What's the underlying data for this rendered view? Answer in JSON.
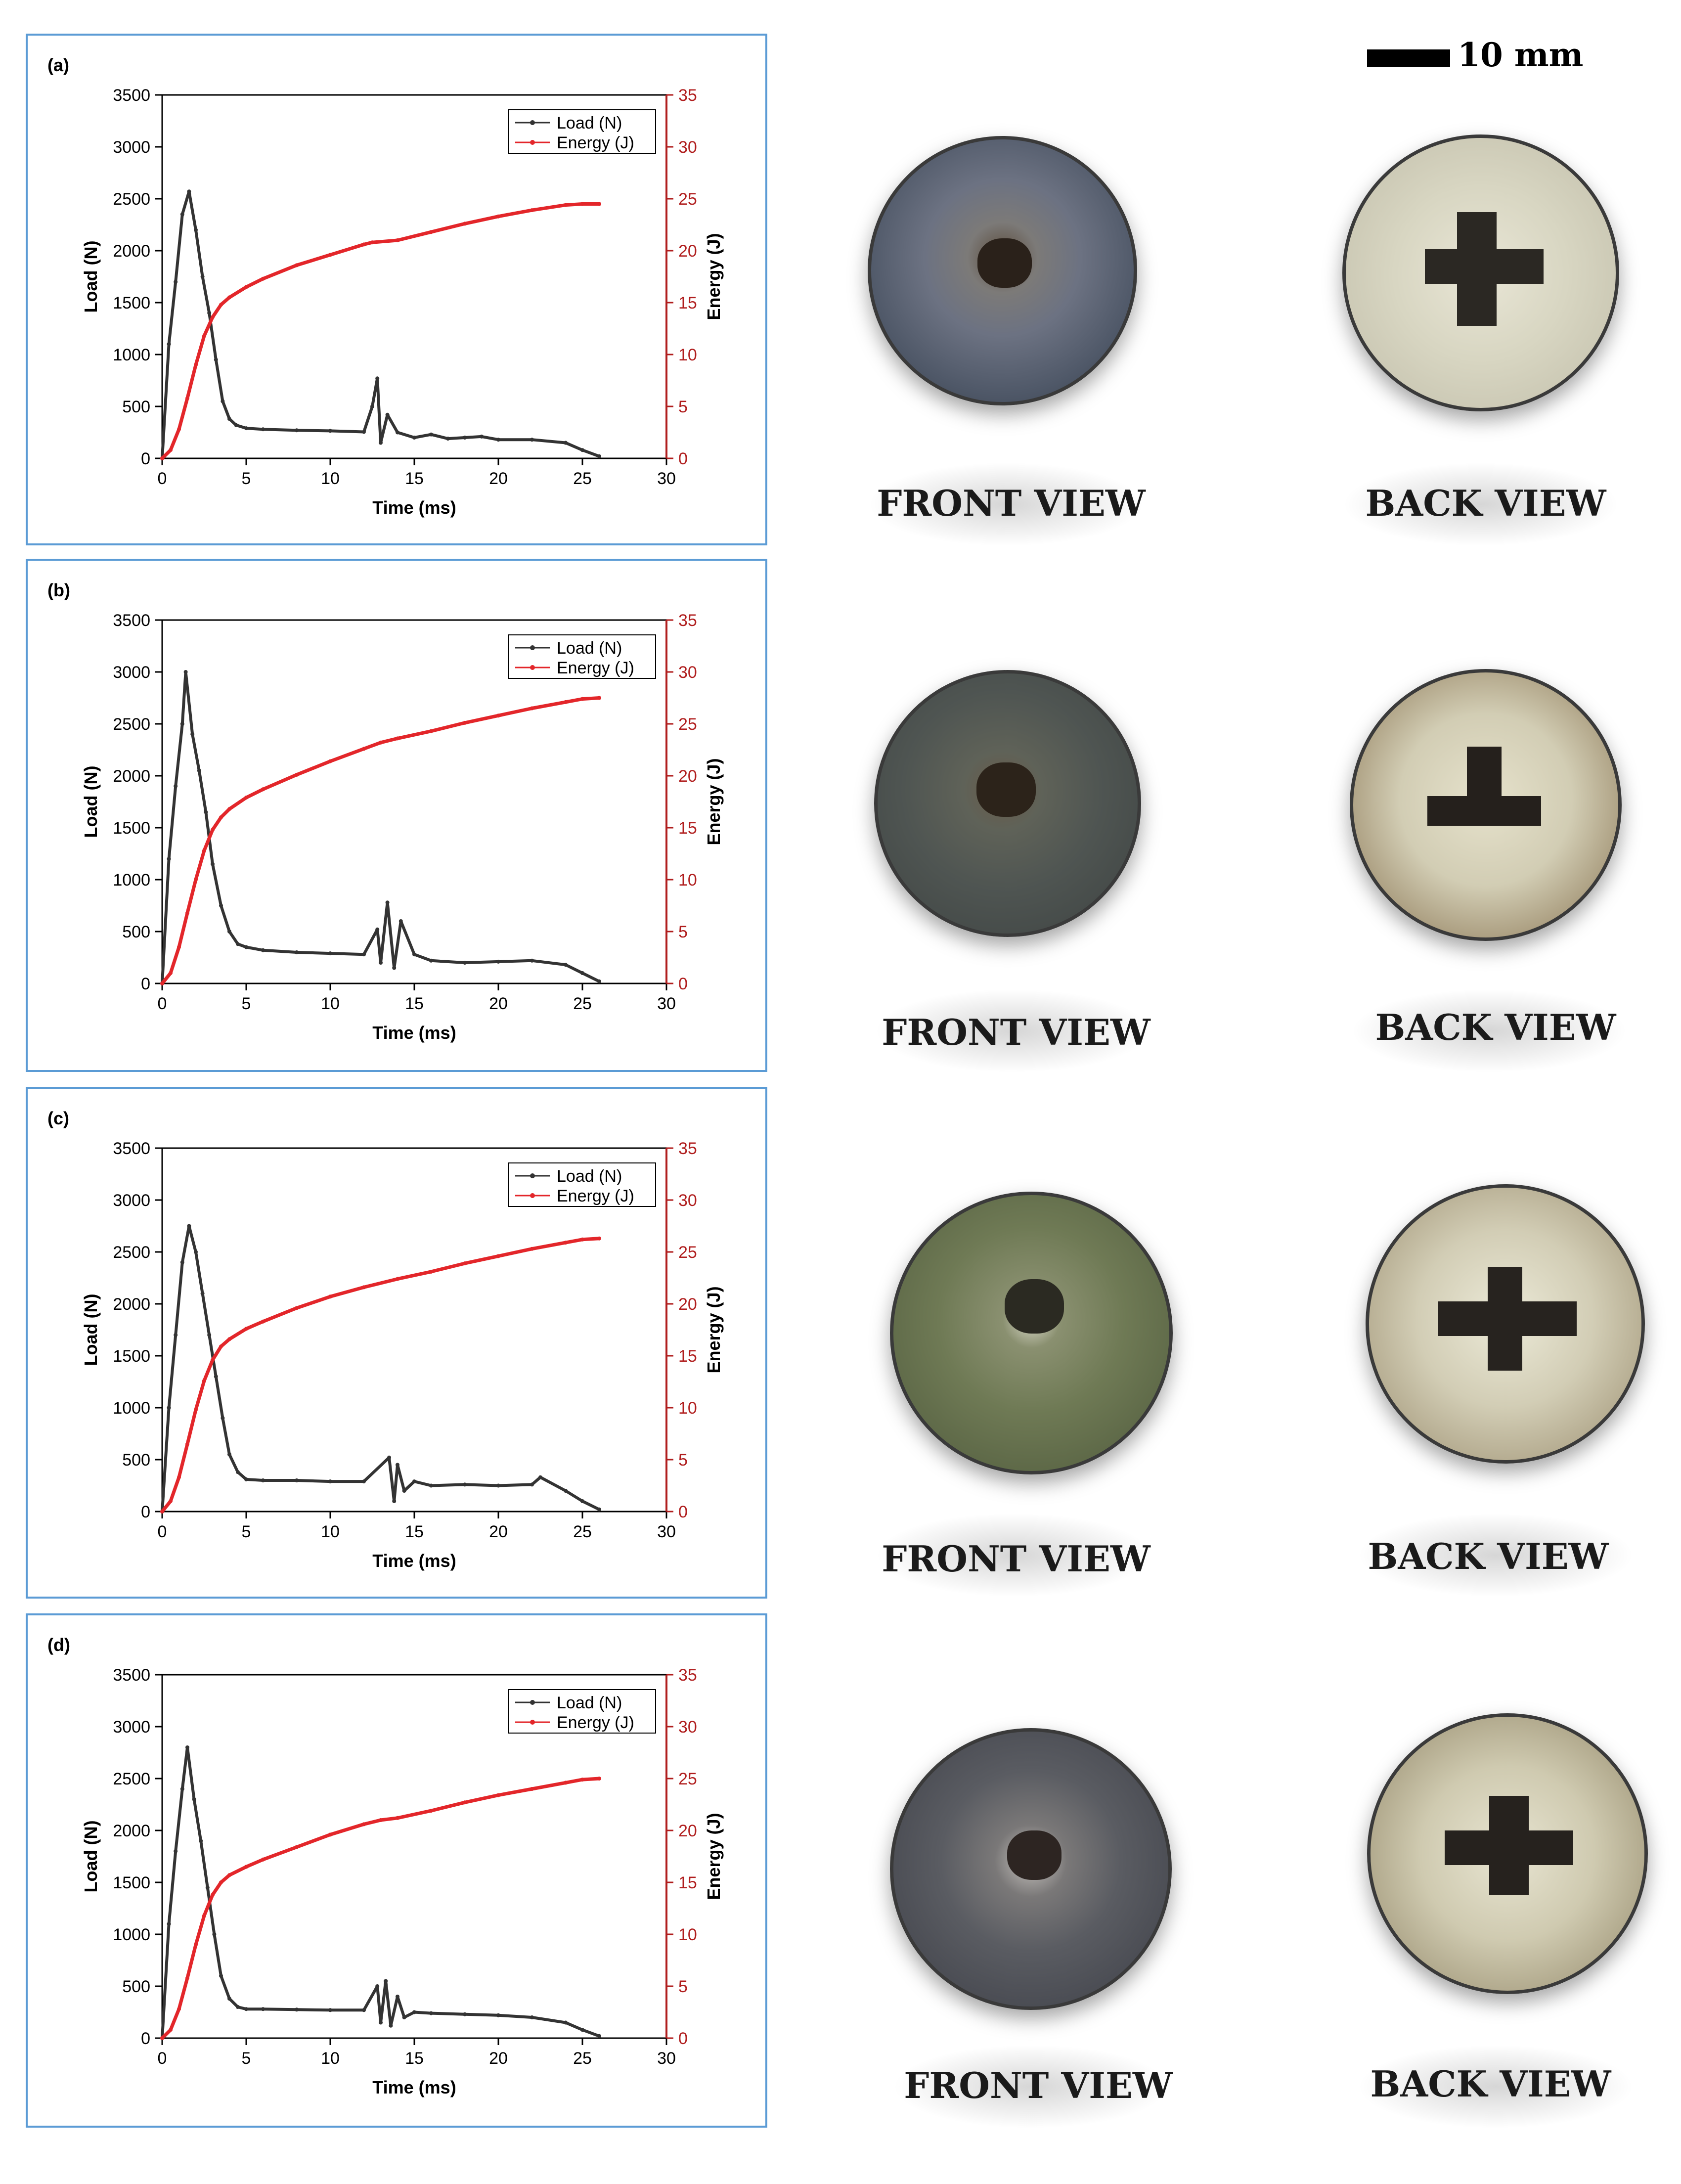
{
  "scale": {
    "label": "10 mm"
  },
  "colors": {
    "load": "#333333",
    "energy": "#e3262a",
    "frame": "#5b9bd5",
    "energy_axis": "#b01e1e"
  },
  "chart_data": [
    {
      "panel": "(a)",
      "type": "line",
      "xlabel": "Time (ms)",
      "ylabel": "Load (N)",
      "y2label": "Energy (J)",
      "xlim": [
        0,
        30
      ],
      "ylim": [
        0,
        3500
      ],
      "y2lim": [
        0,
        35
      ],
      "xticks": [
        0,
        5,
        10,
        15,
        20,
        25,
        30
      ],
      "yticks": [
        0,
        500,
        1000,
        1500,
        2000,
        2500,
        3000,
        3500
      ],
      "y2ticks": [
        0,
        5,
        10,
        15,
        20,
        25,
        30,
        35
      ],
      "legend": [
        "Load (N)",
        "Energy (J)"
      ],
      "legend_position": "top-right",
      "series": [
        {
          "name": "Load (N)",
          "axis": "left",
          "x": [
            0,
            0.4,
            0.8,
            1.2,
            1.6,
            2.0,
            2.4,
            2.8,
            3.2,
            3.6,
            4.0,
            4.4,
            5.0,
            6.0,
            8.0,
            10.0,
            12.0,
            12.5,
            12.8,
            13.0,
            13.4,
            14.0,
            15.0,
            16.0,
            17.0,
            18.0,
            19.0,
            20.0,
            22.0,
            24.0,
            25.0,
            26.0
          ],
          "y": [
            0,
            1100,
            1700,
            2350,
            2570,
            2200,
            1750,
            1400,
            950,
            550,
            380,
            320,
            290,
            280,
            270,
            265,
            255,
            500,
            770,
            150,
            420,
            250,
            200,
            230,
            190,
            200,
            210,
            180,
            180,
            150,
            80,
            20
          ]
        },
        {
          "name": "Energy (J)",
          "axis": "right",
          "x": [
            0,
            0.5,
            1.0,
            1.5,
            2.0,
            2.5,
            3.0,
            3.5,
            4.0,
            5.0,
            6.0,
            8.0,
            10.0,
            12.0,
            12.5,
            14.0,
            16.0,
            18.0,
            20.0,
            22.0,
            24.0,
            25.0,
            26.0
          ],
          "y": [
            0,
            0.8,
            2.8,
            5.8,
            9.0,
            11.8,
            13.6,
            14.8,
            15.5,
            16.5,
            17.3,
            18.6,
            19.6,
            20.6,
            20.8,
            21.0,
            21.8,
            22.6,
            23.3,
            23.9,
            24.4,
            24.5,
            24.5
          ]
        }
      ]
    },
    {
      "panel": "(b)",
      "type": "line",
      "xlabel": "Time (ms)",
      "ylabel": "Load (N)",
      "y2label": "Energy (J)",
      "xlim": [
        0,
        30
      ],
      "ylim": [
        0,
        3500
      ],
      "y2lim": [
        0,
        35
      ],
      "xticks": [
        0,
        5,
        10,
        15,
        20,
        25,
        30
      ],
      "yticks": [
        0,
        500,
        1000,
        1500,
        2000,
        2500,
        3000,
        3500
      ],
      "y2ticks": [
        0,
        5,
        10,
        15,
        20,
        25,
        30,
        35
      ],
      "legend": [
        "Load (N)",
        "Energy (J)"
      ],
      "legend_position": "top-right",
      "series": [
        {
          "name": "Load (N)",
          "axis": "left",
          "x": [
            0,
            0.4,
            0.8,
            1.2,
            1.4,
            1.8,
            2.2,
            2.6,
            3.0,
            3.5,
            4.0,
            4.5,
            5.0,
            6.0,
            8.0,
            10.0,
            12.0,
            12.8,
            13.0,
            13.4,
            13.8,
            14.2,
            15.0,
            16.0,
            18.0,
            20.0,
            22.0,
            24.0,
            25.0,
            26.0
          ],
          "y": [
            0,
            1200,
            1900,
            2500,
            3000,
            2400,
            2050,
            1650,
            1150,
            750,
            500,
            380,
            350,
            320,
            300,
            290,
            280,
            520,
            200,
            780,
            150,
            600,
            280,
            220,
            200,
            210,
            220,
            180,
            100,
            20
          ]
        },
        {
          "name": "Energy (J)",
          "axis": "right",
          "x": [
            0,
            0.5,
            1.0,
            1.5,
            2.0,
            2.5,
            3.0,
            3.5,
            4.0,
            5.0,
            6.0,
            8.0,
            10.0,
            12.0,
            13.0,
            14.0,
            16.0,
            18.0,
            20.0,
            22.0,
            24.0,
            25.0,
            26.0
          ],
          "y": [
            0,
            1.0,
            3.5,
            6.8,
            10.0,
            12.8,
            14.8,
            16.0,
            16.8,
            17.9,
            18.7,
            20.1,
            21.4,
            22.6,
            23.2,
            23.6,
            24.3,
            25.1,
            25.8,
            26.5,
            27.1,
            27.4,
            27.5
          ]
        }
      ]
    },
    {
      "panel": "(c)",
      "type": "line",
      "xlabel": "Time (ms)",
      "ylabel": "Load (N)",
      "y2label": "Energy (J)",
      "xlim": [
        0,
        30
      ],
      "ylim": [
        0,
        3500
      ],
      "y2lim": [
        0,
        35
      ],
      "xticks": [
        0,
        5,
        10,
        15,
        20,
        25,
        30
      ],
      "yticks": [
        0,
        500,
        1000,
        1500,
        2000,
        2500,
        3000,
        3500
      ],
      "y2ticks": [
        0,
        5,
        10,
        15,
        20,
        25,
        30,
        35
      ],
      "legend": [
        "Load (N)",
        "Energy (J)"
      ],
      "legend_position": "top-right",
      "series": [
        {
          "name": "Load (N)",
          "axis": "left",
          "x": [
            0,
            0.4,
            0.8,
            1.2,
            1.6,
            2.0,
            2.4,
            2.8,
            3.2,
            3.6,
            4.0,
            4.5,
            5.0,
            6.0,
            8.0,
            10.0,
            12.0,
            13.5,
            13.8,
            14.0,
            14.4,
            15.0,
            16.0,
            18.0,
            20.0,
            22.0,
            22.5,
            24.0,
            25.0,
            26.0
          ],
          "y": [
            0,
            1000,
            1700,
            2400,
            2750,
            2500,
            2100,
            1700,
            1300,
            900,
            550,
            380,
            310,
            300,
            300,
            290,
            290,
            520,
            100,
            450,
            200,
            290,
            250,
            260,
            250,
            260,
            330,
            200,
            100,
            20
          ]
        },
        {
          "name": "Energy (J)",
          "axis": "right",
          "x": [
            0,
            0.5,
            1.0,
            1.5,
            2.0,
            2.5,
            3.0,
            3.5,
            4.0,
            5.0,
            6.0,
            8.0,
            10.0,
            12.0,
            14.0,
            16.0,
            18.0,
            20.0,
            22.0,
            24.0,
            25.0,
            26.0
          ],
          "y": [
            0,
            1.0,
            3.3,
            6.5,
            9.8,
            12.6,
            14.6,
            15.9,
            16.6,
            17.6,
            18.3,
            19.6,
            20.7,
            21.6,
            22.4,
            23.1,
            23.9,
            24.6,
            25.3,
            25.9,
            26.2,
            26.3
          ]
        }
      ]
    },
    {
      "panel": "(d)",
      "type": "line",
      "xlabel": "Time (ms)",
      "ylabel": "Load (N)",
      "y2label": "Energy (J)",
      "xlim": [
        0,
        30
      ],
      "ylim": [
        0,
        3500
      ],
      "y2lim": [
        0,
        35
      ],
      "xticks": [
        0,
        5,
        10,
        15,
        20,
        25,
        30
      ],
      "yticks": [
        0,
        500,
        1000,
        1500,
        2000,
        2500,
        3000,
        3500
      ],
      "y2ticks": [
        0,
        5,
        10,
        15,
        20,
        25,
        30,
        35
      ],
      "legend": [
        "Load (N)",
        "Energy (J)"
      ],
      "legend_position": "top-right",
      "series": [
        {
          "name": "Load (N)",
          "axis": "left",
          "x": [
            0,
            0.4,
            0.8,
            1.2,
            1.5,
            1.9,
            2.3,
            2.7,
            3.1,
            3.5,
            4.0,
            4.5,
            5.0,
            6.0,
            8.0,
            10.0,
            12.0,
            12.8,
            13.0,
            13.3,
            13.6,
            14.0,
            14.4,
            15.0,
            16.0,
            18.0,
            20.0,
            22.0,
            24.0,
            25.0,
            26.0
          ],
          "y": [
            0,
            1100,
            1800,
            2400,
            2800,
            2300,
            1900,
            1450,
            1000,
            600,
            380,
            300,
            280,
            280,
            275,
            270,
            270,
            500,
            150,
            550,
            120,
            400,
            200,
            250,
            240,
            230,
            220,
            200,
            150,
            80,
            20
          ]
        },
        {
          "name": "Energy (J)",
          "axis": "right",
          "x": [
            0,
            0.5,
            1.0,
            1.5,
            2.0,
            2.5,
            3.0,
            3.5,
            4.0,
            5.0,
            6.0,
            8.0,
            10.0,
            12.0,
            13.0,
            14.0,
            16.0,
            18.0,
            20.0,
            22.0,
            24.0,
            25.0,
            26.0
          ],
          "y": [
            0,
            0.8,
            2.8,
            5.8,
            9.0,
            11.8,
            13.8,
            15.0,
            15.7,
            16.5,
            17.2,
            18.4,
            19.6,
            20.6,
            21.0,
            21.2,
            21.9,
            22.7,
            23.4,
            24.0,
            24.6,
            24.9,
            25.0
          ]
        }
      ]
    }
  ],
  "photos": [
    {
      "id": "a",
      "front_label": "FRONT VIEW",
      "back_label": "BACK VIEW"
    },
    {
      "id": "b",
      "front_label": "FRONT VIEW",
      "back_label": "BACK VIEW"
    },
    {
      "id": "c",
      "front_label": "FRONT VIEW",
      "back_label": "BACK VIEW"
    },
    {
      "id": "d",
      "front_label": "FRONT VIEW",
      "back_label": "BACK VIEW"
    }
  ]
}
